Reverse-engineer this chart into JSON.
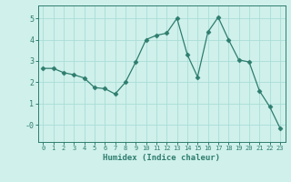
{
  "x": [
    0,
    1,
    2,
    3,
    4,
    5,
    6,
    7,
    8,
    9,
    10,
    11,
    12,
    13,
    14,
    15,
    16,
    17,
    18,
    19,
    20,
    21,
    22,
    23
  ],
  "y": [
    2.65,
    2.65,
    2.45,
    2.35,
    2.2,
    1.75,
    1.7,
    1.45,
    2.0,
    2.95,
    4.0,
    4.2,
    4.3,
    5.0,
    3.3,
    2.25,
    4.35,
    5.05,
    4.0,
    3.05,
    2.95,
    1.6,
    0.85,
    -0.15
  ],
  "line_color": "#2e7d6e",
  "marker": "D",
  "marker_size": 2.5,
  "bg_color": "#cff0eb",
  "grid_color": "#aaddd7",
  "axis_color": "#2e7d6e",
  "tick_color": "#2e7d6e",
  "xlabel": "Humidex (Indice chaleur)",
  "xlim": [
    -0.5,
    23.5
  ],
  "ylim": [
    -0.8,
    5.6
  ],
  "yticks": [
    0,
    1,
    2,
    3,
    4,
    5
  ],
  "ytick_labels": [
    "-0",
    "1",
    "2",
    "3",
    "4",
    "5"
  ],
  "xticks": [
    0,
    1,
    2,
    3,
    4,
    5,
    6,
    7,
    8,
    9,
    10,
    11,
    12,
    13,
    14,
    15,
    16,
    17,
    18,
    19,
    20,
    21,
    22,
    23
  ],
  "figsize": [
    3.2,
    2.0
  ],
  "dpi": 100
}
